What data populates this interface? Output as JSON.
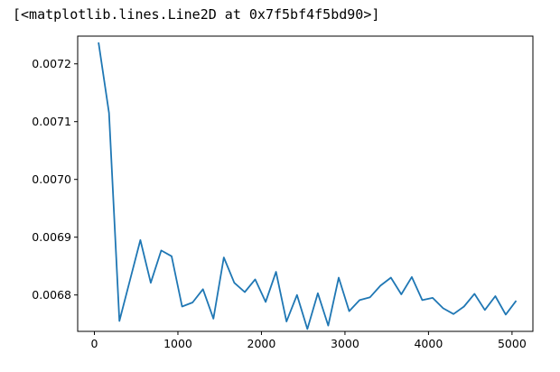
{
  "output_repr": "[<matplotlib.lines.Line2D at 0x7f5bf4f5bd90>]",
  "chart_data": {
    "type": "line",
    "title": "",
    "xlabel": "",
    "ylabel": "",
    "xlim": [
      -200,
      5250
    ],
    "ylim": [
      0.006737,
      0.007248
    ],
    "xticks": [
      0,
      1000,
      2000,
      3000,
      4000,
      5000
    ],
    "xtick_labels": [
      "0",
      "1000",
      "2000",
      "3000",
      "4000",
      "5000"
    ],
    "yticks": [
      0.0068,
      0.0069,
      0.007,
      0.0071,
      0.0072
    ],
    "ytick_labels": [
      "0.0068",
      "0.0069",
      "0.0070",
      "0.0071",
      "0.0072"
    ],
    "grid": false,
    "series": [
      {
        "color": "#1f77b4",
        "x": [
          50,
          175,
          300,
          425,
          550,
          675,
          800,
          925,
          1050,
          1175,
          1300,
          1425,
          1550,
          1675,
          1800,
          1925,
          2050,
          2175,
          2300,
          2425,
          2550,
          2675,
          2800,
          2925,
          3050,
          3175,
          3300,
          3425,
          3550,
          3675,
          3800,
          3925,
          4050,
          4175,
          4300,
          4425,
          4550,
          4675,
          4800,
          4925,
          5050
        ],
        "y": [
          0.007237,
          0.007115,
          0.006755,
          0.006825,
          0.006895,
          0.006821,
          0.006877,
          0.006867,
          0.00678,
          0.006787,
          0.00681,
          0.006759,
          0.006865,
          0.006821,
          0.006805,
          0.006827,
          0.006788,
          0.00684,
          0.006754,
          0.0068,
          0.006741,
          0.006803,
          0.006747,
          0.00683,
          0.006772,
          0.006791,
          0.006796,
          0.006816,
          0.00683,
          0.006801,
          0.006831,
          0.006791,
          0.006795,
          0.006777,
          0.006767,
          0.00678,
          0.006802,
          0.006774,
          0.006798,
          0.006766,
          0.00679
        ]
      }
    ]
  }
}
